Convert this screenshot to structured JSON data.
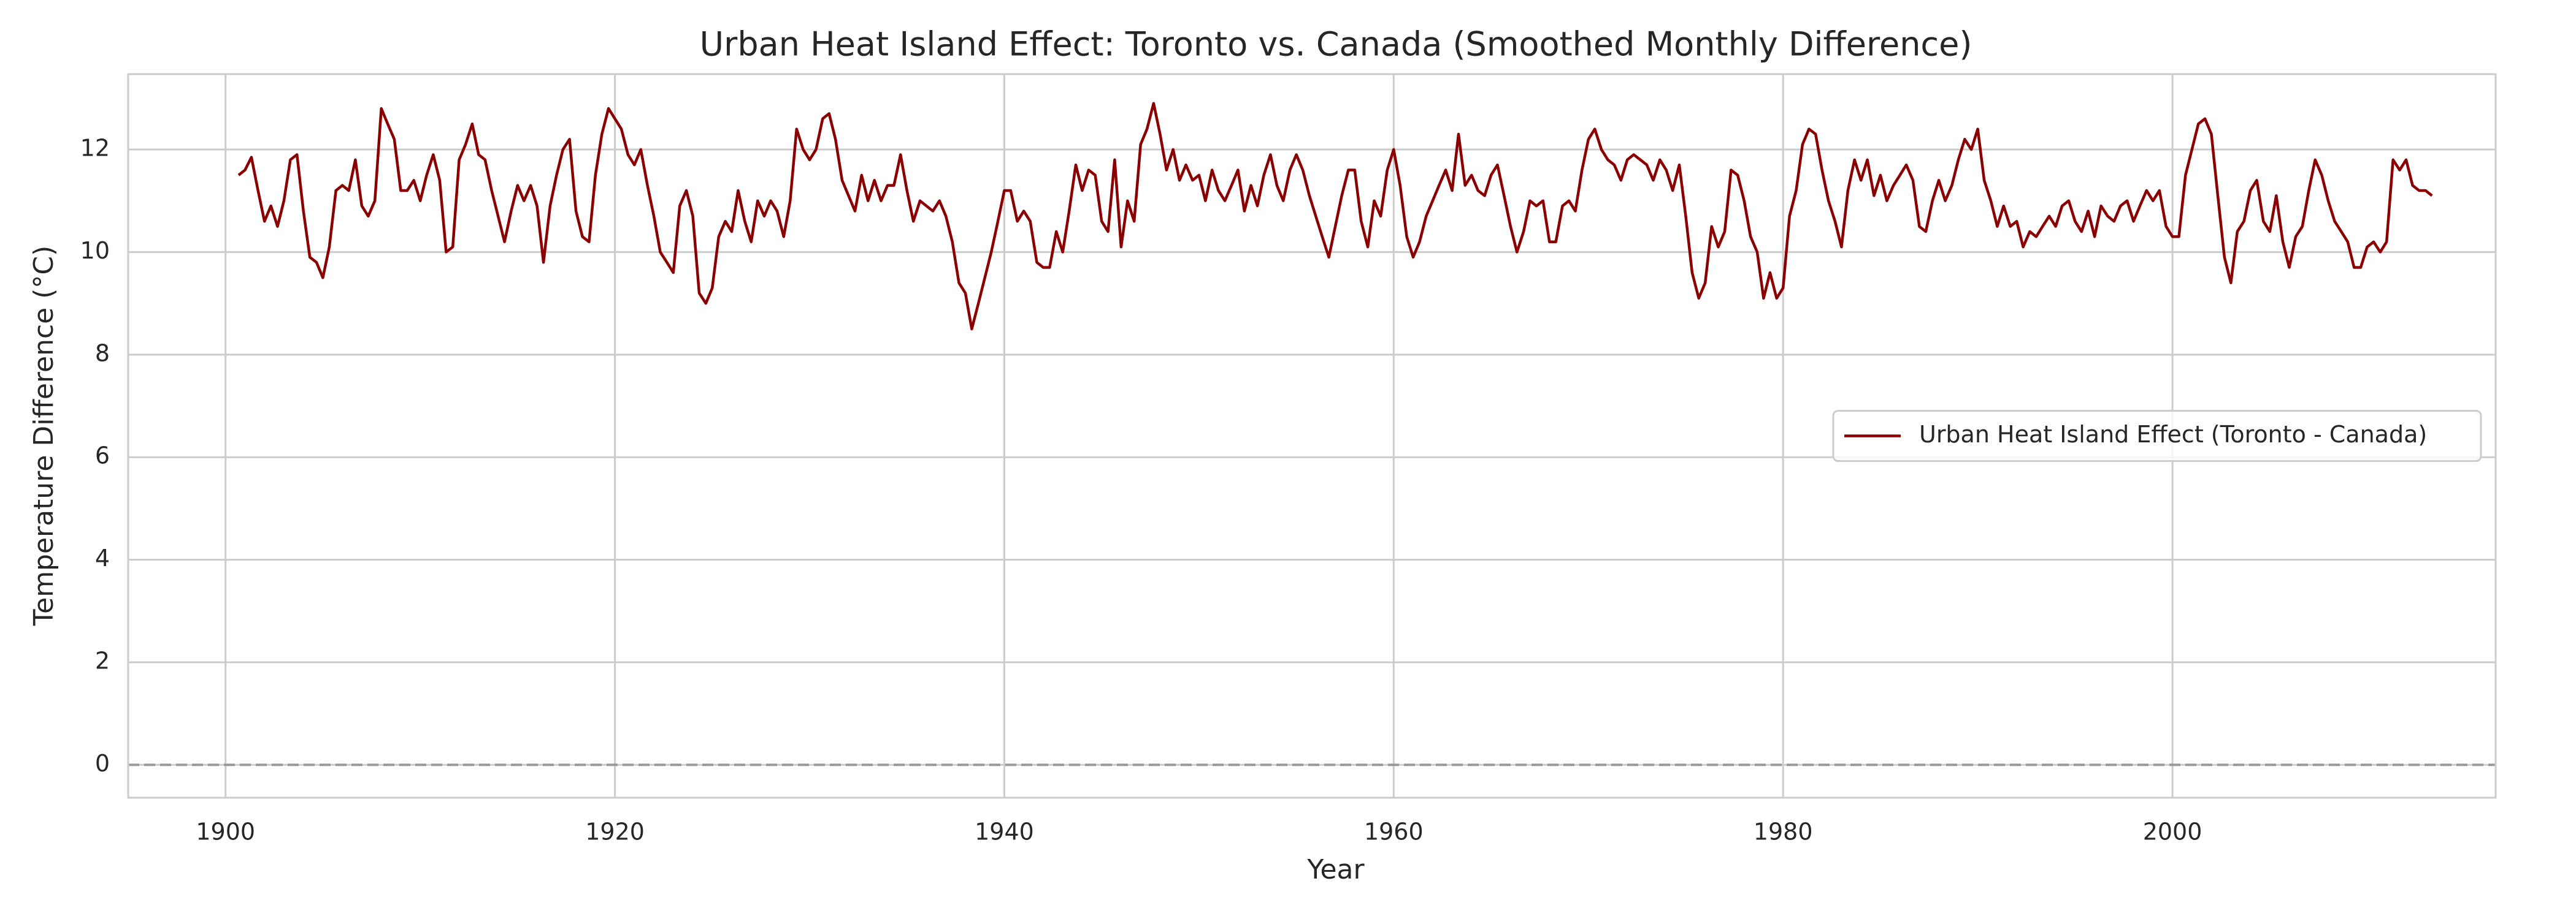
{
  "chart_data": {
    "type": "line",
    "title": "Urban Heat Island Effect: Toronto vs. Canada (Smoothed Monthly Difference)",
    "xlabel": "Year",
    "ylabel": "Temperature Difference (°C)",
    "xlim": [
      1895.0,
      2016.6
    ],
    "ylim": [
      -0.64,
      13.47
    ],
    "xticks": [
      1900,
      1920,
      1940,
      1960,
      1980,
      2000
    ],
    "yticks": [
      0,
      2,
      4,
      6,
      8,
      10,
      12
    ],
    "grid": true,
    "legend": "center right",
    "hline": 0,
    "x": [
      1900.67,
      1901,
      1901.33,
      1901.67,
      1902,
      1902.33,
      1902.67,
      1903,
      1903.33,
      1903.67,
      1904,
      1904.33,
      1904.67,
      1905,
      1905.33,
      1905.67,
      1906,
      1906.33,
      1906.67,
      1907,
      1907.33,
      1907.67,
      1908,
      1908.33,
      1908.67,
      1909,
      1909.33,
      1909.67,
      1910,
      1910.33,
      1910.67,
      1911,
      1911.33,
      1911.67,
      1912,
      1912.33,
      1912.67,
      1913,
      1913.33,
      1913.67,
      1914,
      1914.33,
      1914.67,
      1915,
      1915.33,
      1915.67,
      1916,
      1916.33,
      1916.67,
      1917,
      1917.33,
      1917.67,
      1918,
      1918.33,
      1918.67,
      1919,
      1919.33,
      1919.67,
      1920,
      1920.33,
      1920.67,
      1921,
      1921.33,
      1921.67,
      1922,
      1922.33,
      1922.67,
      1923,
      1923.33,
      1923.67,
      1924,
      1924.33,
      1924.67,
      1925,
      1925.33,
      1925.67,
      1926,
      1926.33,
      1926.67,
      1927,
      1927.33,
      1927.67,
      1928,
      1928.33,
      1928.67,
      1929,
      1929.33,
      1929.67,
      1930,
      1930.33,
      1930.67,
      1931,
      1931.33,
      1931.67,
      1932,
      1932.33,
      1932.67,
      1933,
      1933.33,
      1933.67,
      1934,
      1934.33,
      1934.67,
      1935,
      1935.33,
      1935.67,
      1936,
      1936.33,
      1936.67,
      1937,
      1937.33,
      1937.67,
      1938,
      1938.33,
      1938.67,
      1939,
      1939.33,
      1939.67,
      1940,
      1940.33,
      1940.67,
      1941,
      1941.33,
      1941.67,
      1942,
      1942.33,
      1942.67,
      1943,
      1943.33,
      1943.67,
      1944,
      1944.33,
      1944.67,
      1945,
      1945.33,
      1945.67,
      1946,
      1946.33,
      1946.67,
      1947,
      1947.33,
      1947.67,
      1948,
      1948.33,
      1948.67,
      1949,
      1949.33,
      1949.67,
      1950,
      1950.33,
      1950.67,
      1951,
      1951.33,
      1951.67,
      1952,
      1952.33,
      1952.67,
      1953,
      1953.33,
      1953.67,
      1954,
      1954.33,
      1954.67,
      1955,
      1955.33,
      1955.67,
      1956,
      1956.33,
      1956.67,
      1957,
      1957.33,
      1957.67,
      1958,
      1958.33,
      1958.67,
      1959,
      1959.33,
      1959.67,
      1960,
      1960.33,
      1960.67,
      1961,
      1961.33,
      1961.67,
      1962,
      1962.33,
      1962.67,
      1963,
      1963.33,
      1963.67,
      1964,
      1964.33,
      1964.67,
      1965,
      1965.33,
      1965.67,
      1966,
      1966.33,
      1966.67,
      1967,
      1967.33,
      1967.67,
      1968,
      1968.33,
      1968.67,
      1969,
      1969.33,
      1969.67,
      1970,
      1970.33,
      1970.67,
      1971,
      1971.33,
      1971.67,
      1972,
      1972.33,
      1972.67,
      1973,
      1973.33,
      1973.67,
      1974,
      1974.33,
      1974.67,
      1975,
      1975.33,
      1975.67,
      1976,
      1976.33,
      1976.67,
      1977,
      1977.33,
      1977.67,
      1978,
      1978.33,
      1978.67,
      1979,
      1979.33,
      1979.67,
      1980,
      1980.33,
      1980.67,
      1981,
      1981.33,
      1981.67,
      1982,
      1982.33,
      1982.67,
      1983,
      1983.33,
      1983.67,
      1984,
      1984.33,
      1984.67,
      1985,
      1985.33,
      1985.67,
      1986,
      1986.33,
      1986.67,
      1987,
      1987.33,
      1987.67,
      1988,
      1988.33,
      1988.67,
      1989,
      1989.33,
      1989.67,
      1990,
      1990.33,
      1990.67,
      1991,
      1991.33,
      1991.67,
      1992,
      1992.33,
      1992.67,
      1993,
      1993.33,
      1993.67,
      1994,
      1994.33,
      1994.67,
      1995,
      1995.33,
      1995.67,
      1996,
      1996.33,
      1996.67,
      1997,
      1997.33,
      1997.67,
      1998,
      1998.33,
      1998.67,
      1999,
      1999.33,
      1999.67,
      2000,
      2000.33,
      2000.67,
      2001,
      2001.33,
      2001.67,
      2002,
      2002.33,
      2002.67,
      2003,
      2003.33,
      2003.67,
      2004,
      2004.33,
      2004.67,
      2005,
      2005.33,
      2005.67,
      2006,
      2006.33,
      2006.67,
      2007,
      2007.33,
      2007.67,
      2008,
      2008.33,
      2008.67,
      2009,
      2009.33,
      2009.67,
      2010,
      2010.33,
      2010.67,
      2011,
      2011.33,
      2011.67,
      2012,
      2012.33,
      2012.67,
      2013,
      2013.33
    ],
    "series": [
      {
        "name": "Urban Heat Island Effect (Toronto - Canada)",
        "color": "#8b0000",
        "values": [
          11.5,
          11.6,
          11.85,
          11.2,
          10.6,
          10.9,
          10.5,
          11.0,
          11.8,
          11.9,
          10.8,
          9.9,
          9.8,
          9.5,
          10.1,
          11.2,
          11.3,
          11.2,
          11.8,
          10.9,
          10.7,
          11.0,
          12.8,
          12.5,
          12.2,
          11.2,
          11.2,
          11.4,
          11.0,
          11.5,
          11.9,
          11.4,
          10.0,
          10.1,
          11.8,
          12.1,
          12.5,
          11.9,
          11.8,
          11.2,
          10.7,
          10.2,
          10.8,
          11.3,
          11.0,
          11.3,
          10.9,
          9.8,
          10.9,
          11.5,
          12.0,
          12.2,
          10.8,
          10.3,
          10.2,
          11.5,
          12.3,
          12.8,
          12.6,
          12.4,
          11.9,
          11.7,
          12.0,
          11.3,
          10.7,
          10.0,
          9.8,
          9.6,
          10.9,
          11.2,
          10.7,
          9.2,
          9.0,
          9.3,
          10.3,
          10.6,
          10.4,
          11.2,
          10.6,
          10.2,
          11.0,
          10.7,
          11.0,
          10.8,
          10.3,
          11.0,
          12.4,
          12.0,
          11.8,
          12.0,
          12.6,
          12.7,
          12.2,
          11.4,
          11.1,
          10.8,
          11.5,
          11.0,
          11.4,
          11.0,
          11.3,
          11.3,
          11.9,
          11.2,
          10.6,
          11.0,
          10.9,
          10.8,
          11.0,
          10.7,
          10.2,
          9.4,
          9.2,
          8.5,
          9.0,
          9.5,
          10.0,
          10.6,
          11.2,
          11.2,
          10.6,
          10.8,
          10.6,
          9.8,
          9.7,
          9.7,
          10.4,
          10.0,
          10.8,
          11.7,
          11.2,
          11.6,
          11.5,
          10.6,
          10.4,
          11.8,
          10.1,
          11.0,
          10.6,
          12.1,
          12.4,
          12.9,
          12.3,
          11.6,
          12.0,
          11.4,
          11.7,
          11.4,
          11.5,
          11.0,
          11.6,
          11.2,
          11.0,
          11.3,
          11.6,
          10.8,
          11.3,
          10.9,
          11.5,
          11.9,
          11.3,
          11.0,
          11.6,
          11.9,
          11.6,
          11.1,
          10.7,
          10.3,
          9.9,
          10.5,
          11.1,
          11.6,
          11.6,
          10.6,
          10.1,
          11.0,
          10.7,
          11.6,
          12.0,
          11.3,
          10.3,
          9.9,
          10.2,
          10.7,
          11.0,
          11.3,
          11.6,
          11.2,
          12.3,
          11.3,
          11.5,
          11.2,
          11.1,
          11.5,
          11.7,
          11.1,
          10.5,
          10.0,
          10.4,
          11.0,
          10.9,
          11.0,
          10.2,
          10.2,
          10.9,
          11.0,
          10.8,
          11.6,
          12.2,
          12.4,
          12.0,
          11.8,
          11.7,
          11.4,
          11.8,
          11.9,
          11.8,
          11.7,
          11.4,
          11.8,
          11.6,
          11.2,
          11.7,
          10.7,
          9.6,
          9.1,
          9.4,
          10.5,
          10.1,
          10.4,
          11.6,
          11.5,
          11.0,
          10.3,
          10.0,
          9.1,
          9.6,
          9.1,
          9.3,
          10.7,
          11.2,
          12.1,
          12.4,
          12.3,
          11.6,
          11.0,
          10.6,
          10.1,
          11.2,
          11.8,
          11.4,
          11.8,
          11.1,
          11.5,
          11.0,
          11.3,
          11.5,
          11.7,
          11.4,
          10.5,
          10.4,
          11.0,
          11.4,
          11.0,
          11.3,
          11.8,
          12.2,
          12.0,
          12.4,
          11.4,
          11.0,
          10.5,
          10.9,
          10.5,
          10.6,
          10.1,
          10.4,
          10.3,
          10.5,
          10.7,
          10.5,
          10.9,
          11.0,
          10.6,
          10.4,
          10.8,
          10.3,
          10.9,
          10.7,
          10.6,
          10.9,
          11.0,
          10.6,
          10.9,
          11.2,
          11.0,
          11.2,
          10.5,
          10.3,
          10.3,
          11.5,
          12.0,
          12.5,
          12.6,
          12.3,
          11.1,
          9.9,
          9.4,
          10.4,
          10.6,
          11.2,
          11.4,
          10.6,
          10.4,
          11.1,
          10.2,
          9.7,
          10.3,
          10.5,
          11.2,
          11.8,
          11.5,
          11.0,
          10.6,
          10.4,
          10.2,
          9.7,
          9.7,
          10.1,
          10.2,
          10.0,
          10.2,
          11.8,
          11.6,
          11.8,
          11.3,
          11.2,
          11.2,
          11.1
        ]
      }
    ]
  }
}
